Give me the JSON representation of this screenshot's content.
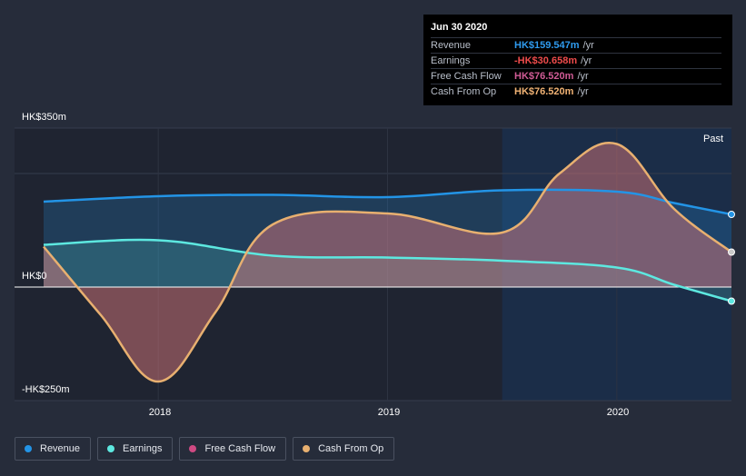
{
  "colors": {
    "revenue": "#2394e6",
    "earnings": "#5de8e0",
    "free_cash_flow": "#cf4a83",
    "cash_from_op": "#e8b070",
    "past_region": "#1b2d48",
    "plot_bg": "#1f2431"
  },
  "tooltip": {
    "date": "Jun 30 2020",
    "rows": [
      {
        "label": "Revenue",
        "value": "HK$159.547m",
        "unit": "/yr",
        "color": "#2f9bef"
      },
      {
        "label": "Earnings",
        "value": "-HK$30.658m",
        "unit": "/yr",
        "color": "#ee4b4b"
      },
      {
        "label": "Free Cash Flow",
        "value": "HK$76.520m",
        "unit": "/yr",
        "color": "#d05b95"
      },
      {
        "label": "Cash From Op",
        "value": "HK$76.520m",
        "unit": "/yr",
        "color": "#f0b274"
      }
    ]
  },
  "past_label": "Past",
  "chart_data": {
    "type": "line",
    "title": "",
    "xlabel": "",
    "ylabel": "",
    "y_tick_labels": [
      "HK$350m",
      "HK$0",
      "-HK$250m"
    ],
    "ylim": [
      -250,
      350
    ],
    "xlim": [
      2017.5,
      2020.5
    ],
    "x_tick_labels": [
      "2018",
      "2019",
      "2020"
    ],
    "x_ticks": [
      2018,
      2019,
      2020
    ],
    "series": [
      {
        "name": "Revenue",
        "color": "#2394e6",
        "x": [
          2017.5,
          2018.0,
          2018.5,
          2019.0,
          2019.5,
          2020.0,
          2020.25,
          2020.5
        ],
        "values": [
          188,
          200,
          203,
          198,
          213,
          210,
          185,
          160
        ]
      },
      {
        "name": "Earnings",
        "color": "#5de8e0",
        "x": [
          2017.5,
          2018.0,
          2018.5,
          2019.0,
          2019.5,
          2020.0,
          2020.25,
          2020.5
        ],
        "values": [
          93,
          103,
          69,
          65,
          58,
          43,
          5,
          -31
        ]
      },
      {
        "name": "Free Cash Flow",
        "color": "#cf4a83",
        "x": [
          2017.5,
          2017.75,
          2018.0,
          2018.25,
          2018.5,
          2019.0,
          2019.5,
          2019.75,
          2020.0,
          2020.25,
          2020.5
        ],
        "values": [
          89,
          -62,
          -208,
          -55,
          138,
          162,
          120,
          250,
          315,
          172,
          77
        ]
      },
      {
        "name": "Cash From Op",
        "color": "#e8b070",
        "x": [
          2017.5,
          2017.75,
          2018.0,
          2018.25,
          2018.5,
          2019.0,
          2019.5,
          2019.75,
          2020.0,
          2020.25,
          2020.5
        ],
        "values": [
          89,
          -62,
          -208,
          -55,
          138,
          162,
          120,
          250,
          315,
          172,
          77
        ]
      }
    ]
  },
  "legend": [
    {
      "label": "Revenue",
      "color": "#2394e6"
    },
    {
      "label": "Earnings",
      "color": "#5de8e0"
    },
    {
      "label": "Free Cash Flow",
      "color": "#cf4a83"
    },
    {
      "label": "Cash From Op",
      "color": "#e8b070"
    }
  ]
}
